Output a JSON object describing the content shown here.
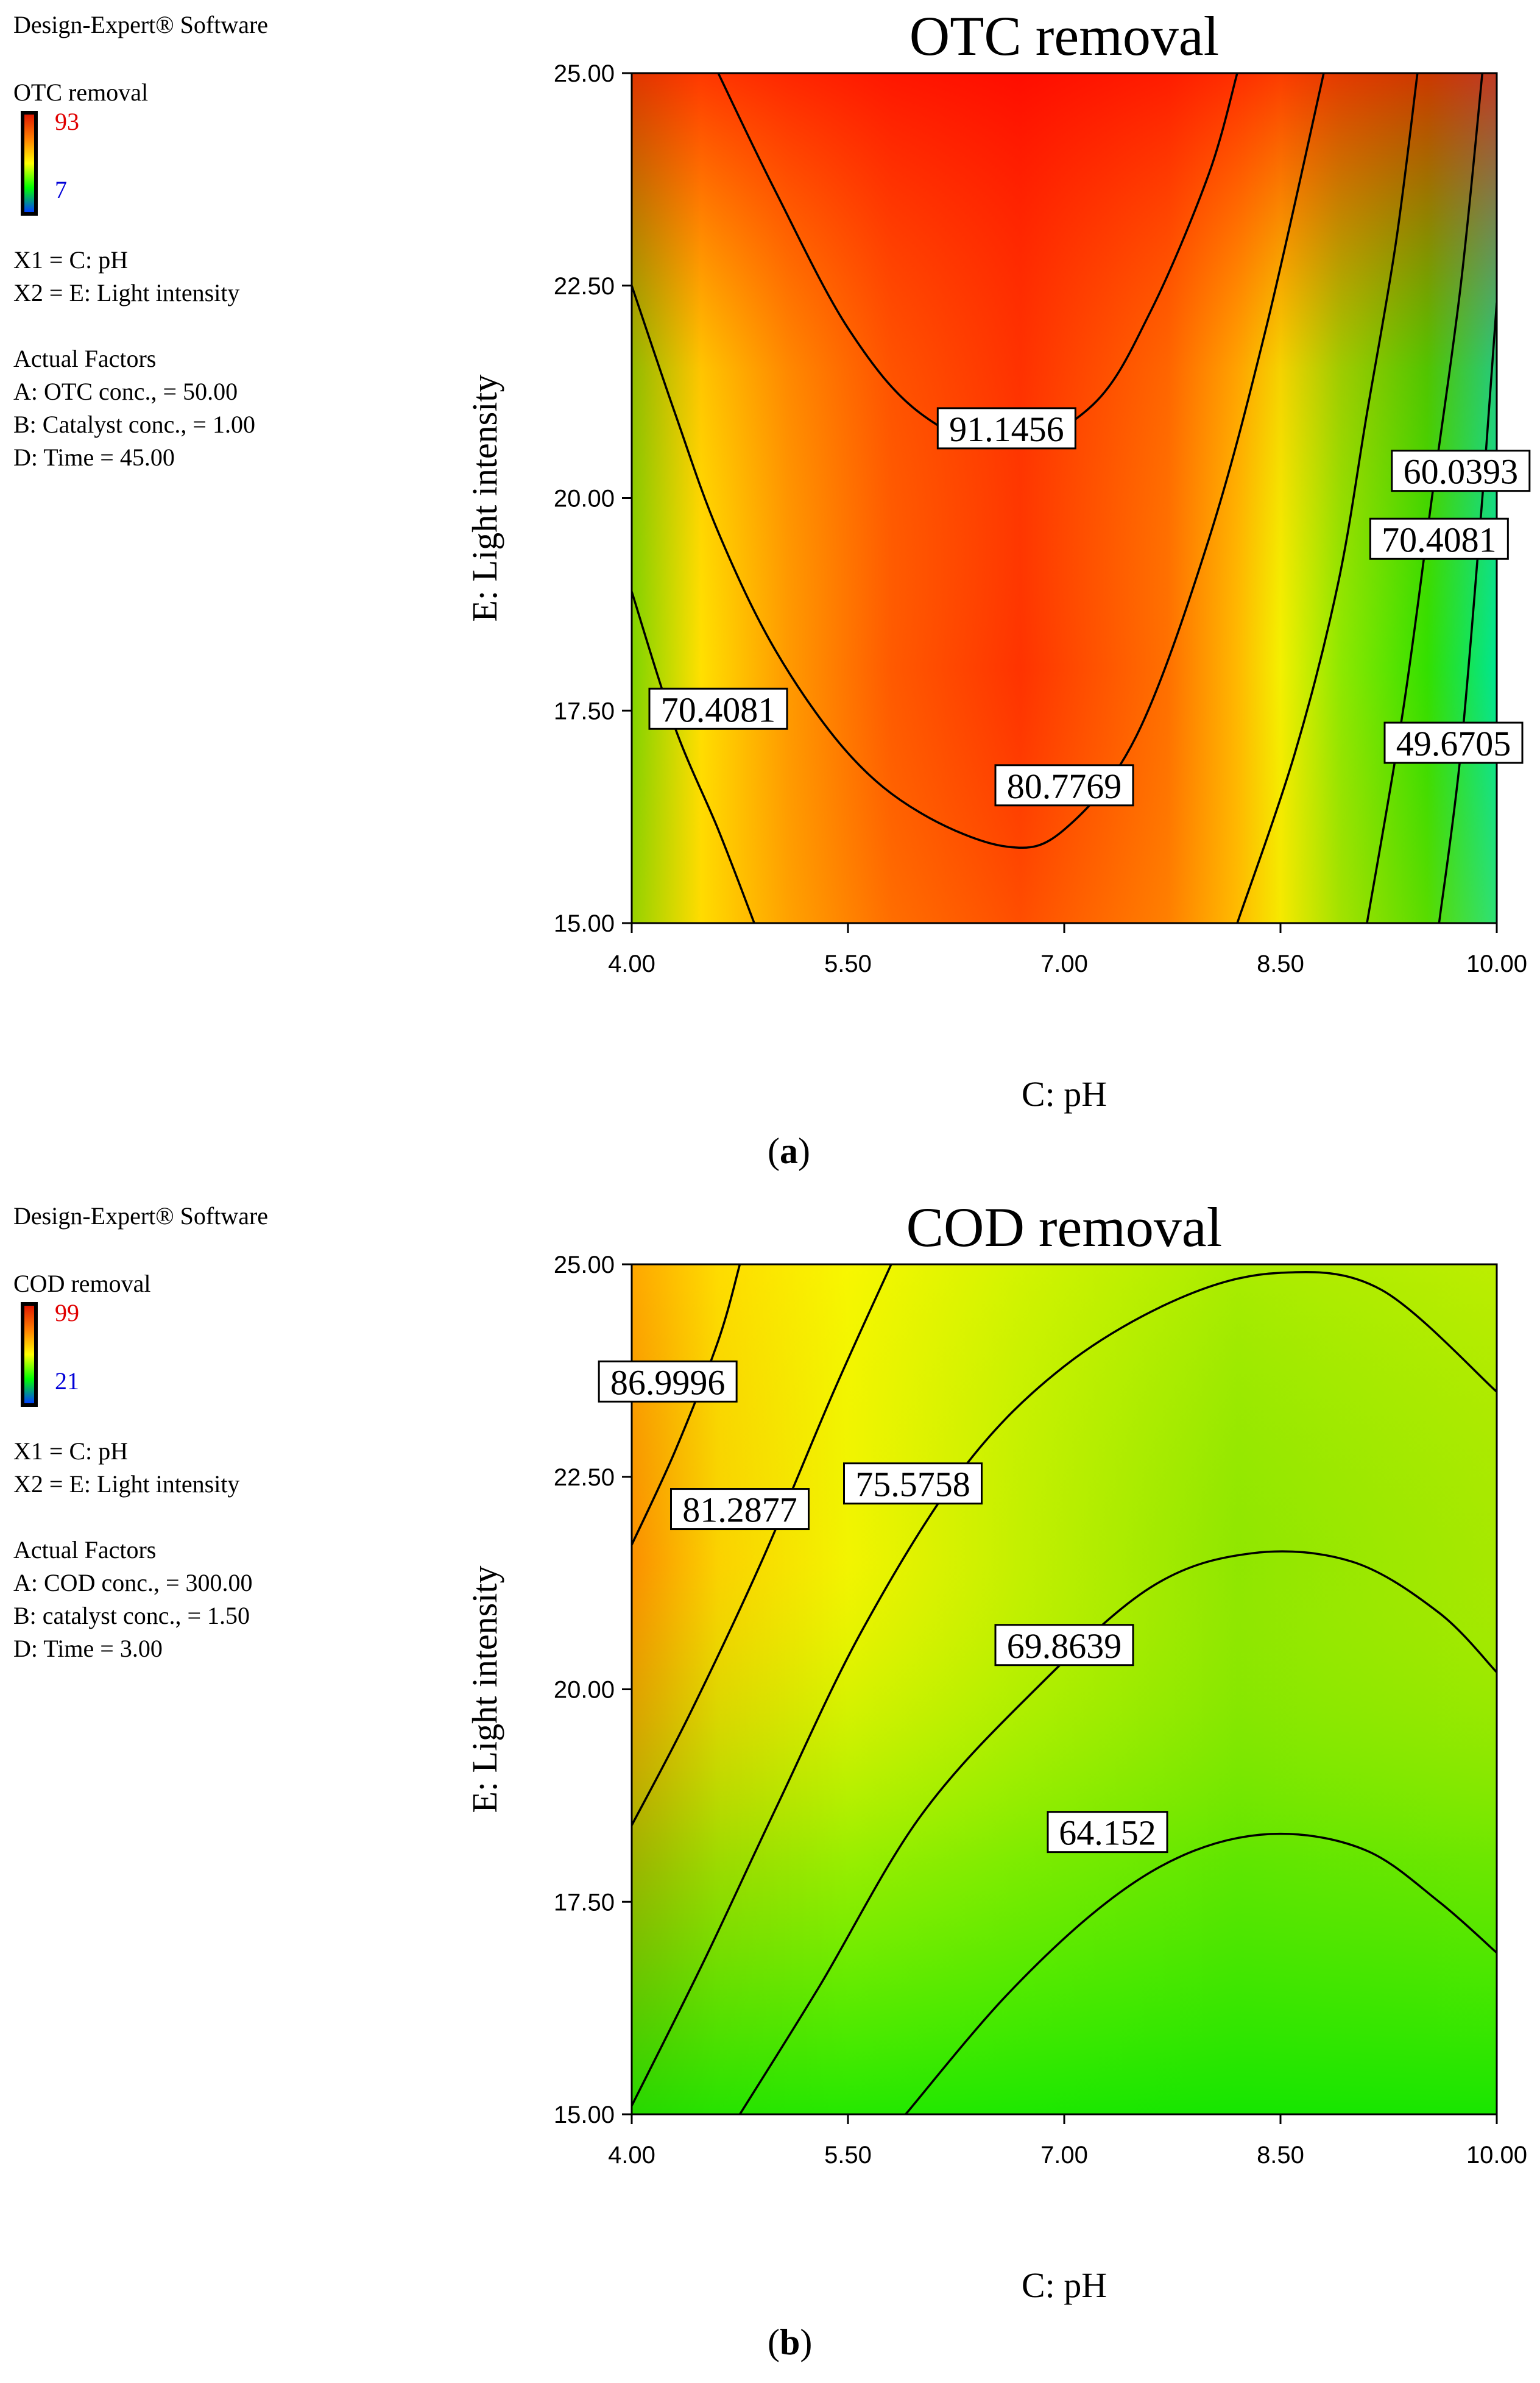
{
  "panels": [
    {
      "id": "a",
      "software": "Design-Expert® Software",
      "response_name": "OTC removal",
      "colorbar_max": "93",
      "colorbar_min": "7",
      "x1_def": "X1 = C: pH",
      "x2_def": "X2 = E: Light intensity",
      "factors_heading": "Actual Factors",
      "factors": [
        "A: OTC conc., = 50.00",
        "B: Catalyst conc., = 1.00",
        "D: Time = 45.00"
      ],
      "caption_letter": "a"
    },
    {
      "id": "b",
      "software": "Design-Expert® Software",
      "response_name": "COD removal",
      "colorbar_max": "99",
      "colorbar_min": "21",
      "x1_def": "X1 = C: pH",
      "x2_def": "X2 = E: Light intensity",
      "factors_heading": "Actual Factors",
      "factors": [
        "A: COD conc., = 300.00",
        "B: catalyst conc., = 1.50",
        "D: Time  = 3.00"
      ],
      "caption_letter": "b"
    }
  ],
  "chart_data": [
    {
      "type": "heatmap",
      "subtype": "contour",
      "title": "OTC removal",
      "xlabel": "C: pH",
      "ylabel": "E: Light intensity",
      "xlim": [
        4,
        10
      ],
      "ylim": [
        15,
        25
      ],
      "x_ticks": [
        "4.00",
        "5.50",
        "7.00",
        "8.50",
        "10.00"
      ],
      "y_ticks": [
        "15.00",
        "17.50",
        "20.00",
        "22.50",
        "25.00"
      ],
      "color_scale": [
        "#0040ff",
        "#00ff00",
        "#ffff00",
        "#ff8000",
        "#ff0000"
      ],
      "z_range": [
        7,
        93
      ],
      "contours": [
        {
          "level": 91.1456,
          "label": "91.1456",
          "points": [
            [
              4.6,
              25
            ],
            [
              5.0,
              23.6
            ],
            [
              5.5,
              22.0
            ],
            [
              6.0,
              21.0
            ],
            [
              6.6,
              20.6
            ],
            [
              7.2,
              21.1
            ],
            [
              7.6,
              22.2
            ],
            [
              8.0,
              23.8
            ],
            [
              8.2,
              25
            ]
          ]
        },
        {
          "level": 80.7769,
          "label": "80.7769",
          "points": [
            [
              4,
              22.5
            ],
            [
              4.3,
              21.0
            ],
            [
              4.6,
              19.6
            ],
            [
              5.0,
              18.2
            ],
            [
              5.5,
              17.0
            ],
            [
              6.0,
              16.3
            ],
            [
              6.6,
              15.9
            ],
            [
              7.0,
              16.1
            ],
            [
              7.5,
              17.2
            ],
            [
              8.0,
              19.5
            ],
            [
              8.4,
              22.0
            ],
            [
              8.8,
              25
            ]
          ]
        },
        {
          "level": 70.4081,
          "label": "70.4081",
          "points": [
            [
              4,
              18.9
            ],
            [
              4.3,
              17.3
            ],
            [
              4.6,
              16.1
            ],
            [
              4.85,
              15
            ]
          ]
        },
        {
          "level": 70.4081,
          "label": "70.4081",
          "points": [
            [
              8.2,
              15
            ],
            [
              8.6,
              17.0
            ],
            [
              8.9,
              19.0
            ],
            [
              9.1,
              21.0
            ],
            [
              9.3,
              23.0
            ],
            [
              9.45,
              25
            ]
          ]
        },
        {
          "level": 60.0393,
          "label": "60.0393",
          "points": [
            [
              9.1,
              15
            ],
            [
              9.35,
              17.5
            ],
            [
              9.55,
              20.0
            ],
            [
              9.75,
              22.5
            ],
            [
              9.9,
              25
            ]
          ]
        },
        {
          "level": 49.6705,
          "label": "49.6705",
          "points": [
            [
              9.6,
              15
            ],
            [
              9.75,
              17.0
            ],
            [
              9.9,
              20.0
            ],
            [
              10,
              22.3
            ]
          ]
        }
      ],
      "contour_labels": [
        {
          "text": "91.1456",
          "x": 6.6,
          "y": 20.8
        },
        {
          "text": "80.7769",
          "x": 7.0,
          "y": 16.6
        },
        {
          "text": "70.4081",
          "x": 4.6,
          "y": 17.5
        },
        {
          "text": "70.4081",
          "x": 9.6,
          "y": 19.5
        },
        {
          "text": "60.0393",
          "x": 9.75,
          "y": 20.3
        },
        {
          "text": "49.6705",
          "x": 9.7,
          "y": 17.1
        }
      ]
    },
    {
      "type": "heatmap",
      "subtype": "contour",
      "title": "COD removal",
      "xlabel": "C: pH",
      "ylabel": "E: Light intensity",
      "xlim": [
        4,
        10
      ],
      "ylim": [
        15,
        25
      ],
      "x_ticks": [
        "4.00",
        "5.50",
        "7.00",
        "8.50",
        "10.00"
      ],
      "y_ticks": [
        "15.00",
        "17.50",
        "20.00",
        "22.50",
        "25.00"
      ],
      "color_scale": [
        "#0040ff",
        "#00ff00",
        "#ffff00",
        "#ff8000",
        "#ff0000"
      ],
      "z_range": [
        21,
        99
      ],
      "contours": [
        {
          "level": 86.9996,
          "label": "86.9996",
          "points": [
            [
              4,
              21.7
            ],
            [
              4.3,
              22.8
            ],
            [
              4.6,
              24.1
            ],
            [
              4.75,
              25
            ]
          ]
        },
        {
          "level": 81.2877,
          "label": "81.2877",
          "points": [
            [
              4,
              18.4
            ],
            [
              4.4,
              19.7
            ],
            [
              4.9,
              21.5
            ],
            [
              5.4,
              23.5
            ],
            [
              5.8,
              25
            ]
          ]
        },
        {
          "level": 75.5758,
          "label": "75.5758",
          "points": [
            [
              4,
              15.1
            ],
            [
              4.5,
              16.8
            ],
            [
              5.0,
              18.6
            ],
            [
              5.6,
              20.7
            ],
            [
              6.3,
              22.6
            ],
            [
              7.0,
              23.8
            ],
            [
              7.8,
              24.6
            ],
            [
              8.5,
              24.9
            ],
            [
              9.2,
              24.7
            ],
            [
              10,
              23.5
            ]
          ]
        },
        {
          "level": 69.8639,
          "label": "69.8639",
          "points": [
            [
              4.75,
              15
            ],
            [
              5.3,
              16.5
            ],
            [
              6.0,
              18.5
            ],
            [
              6.8,
              20.0
            ],
            [
              7.6,
              21.2
            ],
            [
              8.3,
              21.6
            ],
            [
              9.0,
              21.5
            ],
            [
              9.6,
              20.9
            ],
            [
              10,
              20.2
            ]
          ]
        },
        {
          "level": 64.152,
          "label": "64.152",
          "points": [
            [
              5.9,
              15
            ],
            [
              6.6,
              16.4
            ],
            [
              7.3,
              17.5
            ],
            [
              7.9,
              18.1
            ],
            [
              8.5,
              18.3
            ],
            [
              9.1,
              18.1
            ],
            [
              9.6,
              17.5
            ],
            [
              10,
              16.9
            ]
          ]
        }
      ],
      "contour_labels": [
        {
          "text": "86.9996",
          "x": 4.25,
          "y": 23.6
        },
        {
          "text": "81.2877",
          "x": 4.75,
          "y": 22.1
        },
        {
          "text": "75.5758",
          "x": 5.95,
          "y": 22.4
        },
        {
          "text": "69.8639",
          "x": 7.0,
          "y": 20.5
        },
        {
          "text": "64.152",
          "x": 7.3,
          "y": 18.3
        }
      ]
    }
  ]
}
